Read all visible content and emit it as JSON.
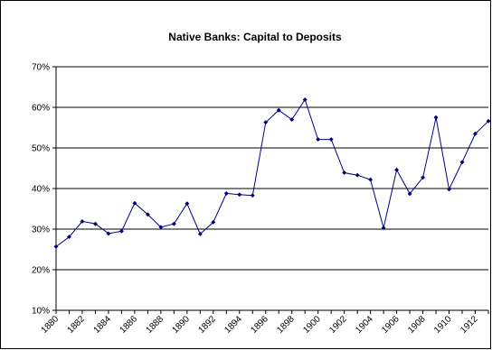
{
  "chart_data": {
    "type": "line",
    "title": "Native Banks: Capital to Deposits",
    "xlabel": "",
    "ylabel": "",
    "ylim": [
      10,
      70
    ],
    "y_tick_labels": [
      "10%",
      "20%",
      "30%",
      "40%",
      "50%",
      "60%",
      "70%"
    ],
    "y_ticks": [
      10,
      20,
      30,
      40,
      50,
      60,
      70
    ],
    "x_tick_labels": [
      "1880",
      "1882",
      "1884",
      "1886",
      "1888",
      "1890",
      "1892",
      "1894",
      "1896",
      "1898",
      "1900",
      "1902",
      "1904",
      "1906",
      "1908",
      "1910",
      "1912"
    ],
    "grid": true,
    "legend": "none",
    "line_color": "#000080",
    "series": [
      {
        "x": [
          1880,
          1881,
          1882,
          1883,
          1884,
          1885,
          1886,
          1887,
          1888,
          1889,
          1890,
          1891,
          1892,
          1893,
          1894,
          1895,
          1896,
          1897,
          1898,
          1899,
          1900,
          1901,
          1902,
          1903,
          1904,
          1905,
          1906,
          1907,
          1908,
          1909,
          1910,
          1911,
          1912,
          1913
        ],
        "values": [
          25.7,
          28.1,
          31.9,
          31.3,
          28.9,
          29.5,
          36.4,
          33.6,
          30.5,
          31.3,
          36.3,
          28.8,
          31.7,
          38.8,
          38.5,
          38.3,
          56.3,
          59.3,
          57.0,
          61.9,
          52.1,
          52.1,
          43.9,
          43.3,
          42.2,
          30.3,
          44.6,
          38.7,
          42.7,
          57.5,
          39.8,
          46.5,
          53.5,
          56.6
        ]
      }
    ]
  }
}
